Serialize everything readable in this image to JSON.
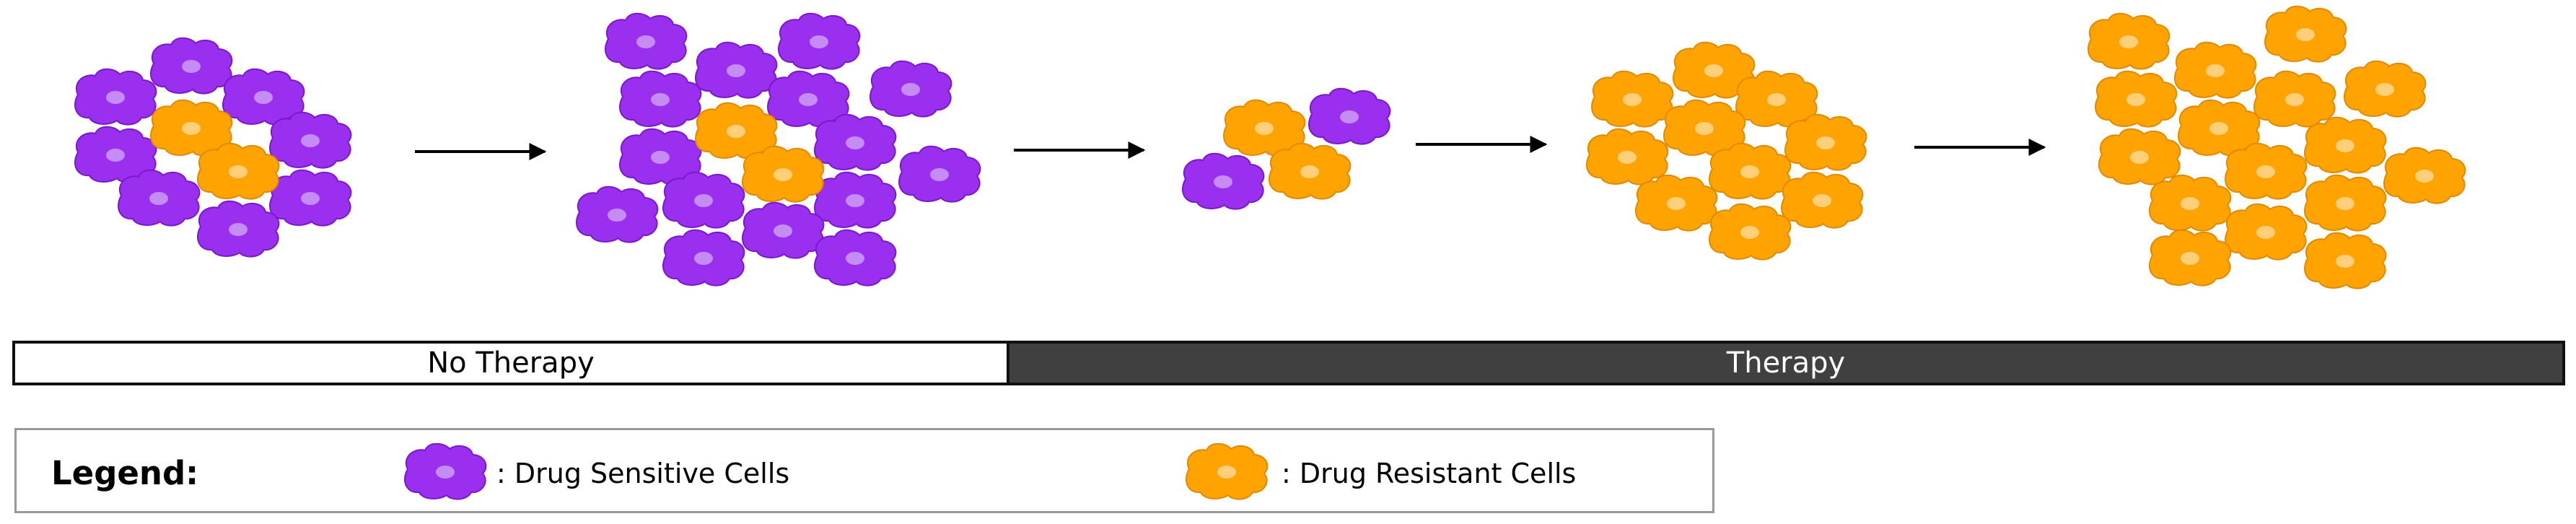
{
  "phases": {
    "no_therapy_label": "No Therapy",
    "therapy_label": "Therapy"
  },
  "legend": {
    "title": "Legend:",
    "sensitive_label": ": Drug Sensitive Cells",
    "resistant_label": ": Drug Resistant Cells"
  },
  "colors": {
    "sensitive": "#9b2ff0",
    "sensitive_stroke": "#7a18cc",
    "sensitive_nucleus": "#c58cf5",
    "resistant": "#ffa300",
    "resistant_stroke": "#e08a00",
    "resistant_nucleus": "#ffcf7a",
    "arrow": "#000000"
  },
  "stages": [
    {
      "sensitive_cells": 9,
      "resistant_cells": 2
    },
    {
      "sensitive_cells": 14,
      "resistant_cells": 2
    },
    {
      "sensitive_cells": 2,
      "resistant_cells": 2
    },
    {
      "sensitive_cells": 0,
      "resistant_cells": 11
    },
    {
      "sensitive_cells": 0,
      "resistant_cells": 16
    }
  ]
}
